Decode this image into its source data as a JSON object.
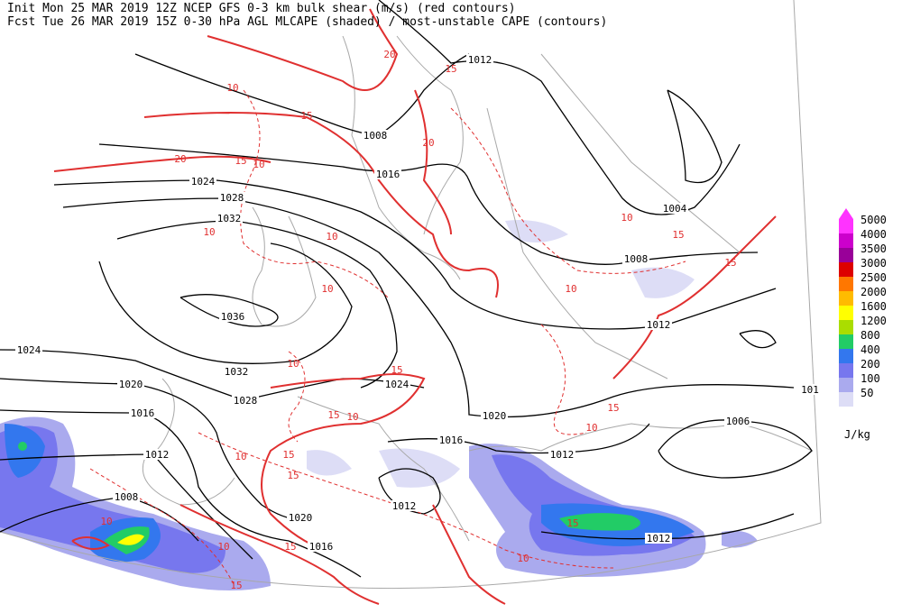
{
  "header": {
    "line1": "Init  Mon 25 MAR 2019 12Z  NCEP GFS 0-3 km bulk shear (m/s) (red contours)",
    "line2": "Fcst Tue 26 MAR 2019 15Z  0-30 hPa AGL MLCAPE (shaded) / most-unstable CAPE (contours)"
  },
  "colorbar": {
    "labels": [
      "5000",
      "4000",
      "3500",
      "3000",
      "2500",
      "2000",
      "1600",
      "1200",
      "800",
      "400",
      "200",
      "100",
      "50"
    ],
    "colors": [
      "#ff33ff",
      "#cc00cc",
      "#990099",
      "#dd0000",
      "#ff7700",
      "#ffbb00",
      "#ffff00",
      "#aadd00",
      "#22cc66",
      "#3377ee",
      "#7777ee",
      "#aaaaee",
      "#ddddf6"
    ],
    "unit": "J/kg"
  },
  "isobar_labels": [
    "1012",
    "1008",
    "1016",
    "1024",
    "1028",
    "1032",
    "1004",
    "1008",
    "1036",
    "1012",
    "1032",
    "1024",
    "1020",
    "1024",
    "1028",
    "101",
    "1016",
    "1020",
    "1006",
    "1016",
    "1012",
    "1012",
    "1008",
    "1012",
    "1020",
    "1012",
    "1016"
  ],
  "shear_labels": [
    "10",
    "15",
    "20",
    "15",
    "10",
    "20",
    "15",
    "20",
    "10",
    "15",
    "10",
    "10",
    "10",
    "10",
    "15",
    "10",
    "15",
    "10",
    "15",
    "10",
    "15",
    "15",
    "10",
    "10",
    "15",
    "15",
    "10",
    "15",
    "15",
    "10"
  ]
}
